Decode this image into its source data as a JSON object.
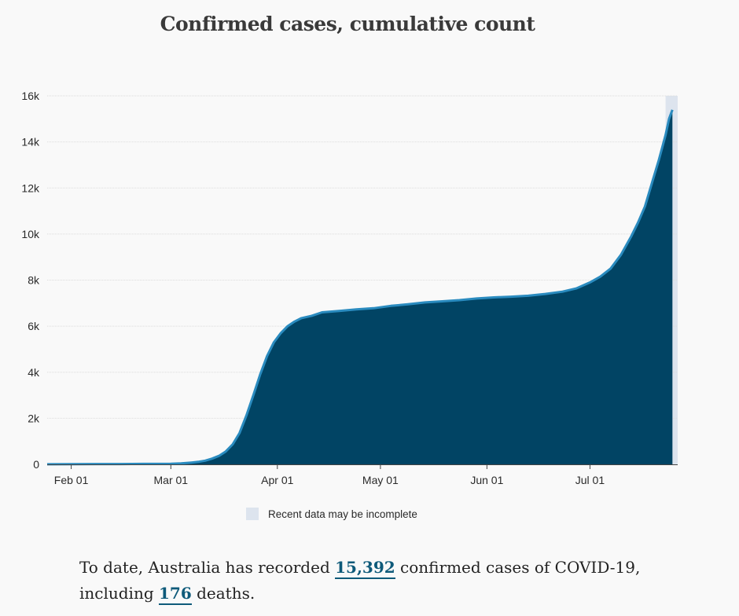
{
  "chart_data": {
    "type": "area",
    "title": "Confirmed cases, cumulative count",
    "xlabel": "",
    "ylabel": "",
    "ylim": [
      0,
      16000
    ],
    "yticks": [
      {
        "value": 0,
        "label": "0"
      },
      {
        "value": 2000,
        "label": "2k"
      },
      {
        "value": 4000,
        "label": "4k"
      },
      {
        "value": 6000,
        "label": "6k"
      },
      {
        "value": 8000,
        "label": "8k"
      },
      {
        "value": 10000,
        "label": "10k"
      },
      {
        "value": 12000,
        "label": "12k"
      },
      {
        "value": 14000,
        "label": "14k"
      },
      {
        "value": 16000,
        "label": "16k"
      }
    ],
    "xrange_day": [
      0,
      182
    ],
    "xticks": [
      {
        "day": 7,
        "label": "Feb 01"
      },
      {
        "day": 36,
        "label": "Mar 01"
      },
      {
        "day": 67,
        "label": "Apr 01"
      },
      {
        "day": 97,
        "label": "May 01"
      },
      {
        "day": 128,
        "label": "Jun 01"
      },
      {
        "day": 158,
        "label": "Jul 01"
      }
    ],
    "x_day_note": "days since Jan 25 2020",
    "incomplete_from_day": 180,
    "series": [
      {
        "name": "Confirmed cases",
        "points": [
          [
            0,
            4
          ],
          [
            7,
            9
          ],
          [
            14,
            15
          ],
          [
            21,
            15
          ],
          [
            28,
            22
          ],
          [
            36,
            27
          ],
          [
            39,
            40
          ],
          [
            42,
            80
          ],
          [
            44,
            110
          ],
          [
            46,
            160
          ],
          [
            48,
            250
          ],
          [
            50,
            370
          ],
          [
            52,
            560
          ],
          [
            54,
            870
          ],
          [
            56,
            1360
          ],
          [
            58,
            2130
          ],
          [
            60,
            3000
          ],
          [
            62,
            3900
          ],
          [
            64,
            4700
          ],
          [
            66,
            5300
          ],
          [
            68,
            5700
          ],
          [
            70,
            6000
          ],
          [
            72,
            6200
          ],
          [
            74,
            6350
          ],
          [
            77,
            6450
          ],
          [
            80,
            6600
          ],
          [
            85,
            6660
          ],
          [
            90,
            6730
          ],
          [
            95,
            6780
          ],
          [
            100,
            6880
          ],
          [
            105,
            6950
          ],
          [
            110,
            7030
          ],
          [
            115,
            7080
          ],
          [
            120,
            7130
          ],
          [
            125,
            7200
          ],
          [
            130,
            7250
          ],
          [
            135,
            7280
          ],
          [
            140,
            7320
          ],
          [
            145,
            7400
          ],
          [
            150,
            7500
          ],
          [
            154,
            7640
          ],
          [
            158,
            7900
          ],
          [
            161,
            8150
          ],
          [
            164,
            8500
          ],
          [
            167,
            9100
          ],
          [
            170,
            9900
          ],
          [
            172,
            10500
          ],
          [
            174,
            11200
          ],
          [
            176,
            12200
          ],
          [
            178,
            13200
          ],
          [
            180,
            14300
          ],
          [
            181,
            15000
          ],
          [
            182,
            15392
          ]
        ]
      }
    ],
    "legend": {
      "label": "Recent data may be incomplete",
      "color": "#dde4ee"
    },
    "colors": {
      "area": "#014464",
      "line": "#2a8bbf",
      "grid": "#dcdcdc",
      "incomplete": "#dde4ee"
    }
  },
  "summary": {
    "prefix": "To date, Australia has recorded ",
    "cases": "15,392",
    "middle": " confirmed cases of COVID-19,",
    "line2_prefix": "including ",
    "deaths": "176",
    "suffix": " deaths."
  }
}
